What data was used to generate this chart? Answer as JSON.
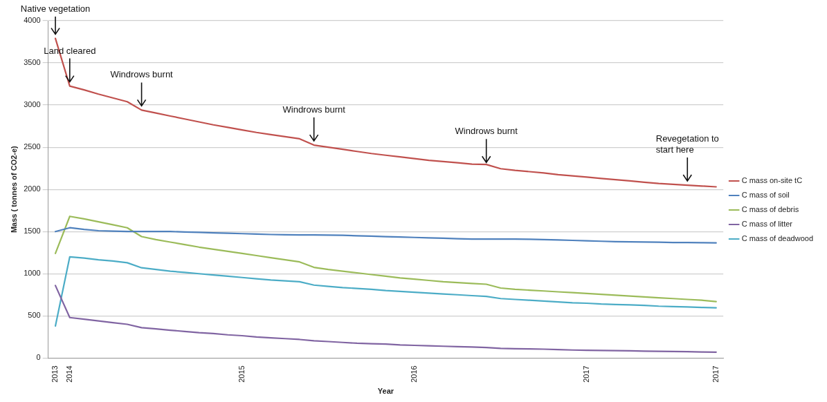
{
  "chart_data": {
    "type": "line",
    "xlabel": "Year",
    "ylabel": "Mass ( tonnes of CO2-e)",
    "x": [
      "2013-12",
      "2014-01",
      "2014-02",
      "2014-03",
      "2014-04",
      "2014-05",
      "2014-06",
      "2014-07",
      "2014-08",
      "2014-09",
      "2014-10",
      "2014-11",
      "2014-12",
      "2015-01",
      "2015-02",
      "2015-03",
      "2015-04",
      "2015-05",
      "2015-06",
      "2015-07",
      "2015-08",
      "2015-09",
      "2015-10",
      "2015-11",
      "2015-12",
      "2016-01",
      "2016-02",
      "2016-03",
      "2016-04",
      "2016-05",
      "2016-06",
      "2016-07",
      "2016-08",
      "2016-09",
      "2016-10",
      "2016-11",
      "2016-12",
      "2017-01",
      "2017-02",
      "2017-03",
      "2017-04",
      "2017-05",
      "2017-06",
      "2017-07",
      "2017-08",
      "2017-09",
      "2017-10"
    ],
    "xlim": [
      "2013-11-16",
      "2017-10-16"
    ],
    "xticks": [
      {
        "value": "2013-12",
        "label": "2013"
      },
      {
        "value": "2014-01",
        "label": "2014"
      },
      {
        "value": "2015-01",
        "label": "2015"
      },
      {
        "value": "2016-01",
        "label": "2016"
      },
      {
        "value": "2017-01",
        "label": "2017"
      },
      {
        "value": "2017-10",
        "label": "2017"
      }
    ],
    "ylim": [
      0,
      4000
    ],
    "yticks": [
      0,
      500,
      1000,
      1500,
      2000,
      2500,
      3000,
      3500,
      4000
    ],
    "grid": "y",
    "legend": "right",
    "marker": "none",
    "line_style": "solid",
    "series": [
      {
        "name": "C mass on-site tC",
        "color": "#c0504d",
        "values": [
          3790,
          3225,
          3180,
          3130,
          3085,
          3040,
          2940,
          2905,
          2870,
          2835,
          2800,
          2765,
          2735,
          2705,
          2675,
          2650,
          2625,
          2600,
          2525,
          2500,
          2475,
          2450,
          2425,
          2405,
          2385,
          2365,
          2345,
          2330,
          2315,
          2300,
          2295,
          2245,
          2225,
          2210,
          2195,
          2175,
          2160,
          2145,
          2130,
          2115,
          2100,
          2085,
          2070,
          2060,
          2050,
          2040,
          2030
        ]
      },
      {
        "name": "C mass of soil",
        "color": "#4f81bd",
        "values": [
          1500,
          1545,
          1525,
          1510,
          1505,
          1500,
          1500,
          1500,
          1500,
          1495,
          1490,
          1485,
          1480,
          1475,
          1470,
          1465,
          1462,
          1460,
          1460,
          1457,
          1455,
          1450,
          1445,
          1440,
          1435,
          1430,
          1425,
          1420,
          1415,
          1410,
          1410,
          1410,
          1410,
          1408,
          1405,
          1400,
          1395,
          1390,
          1385,
          1380,
          1378,
          1375,
          1373,
          1370,
          1370,
          1368,
          1365
        ]
      },
      {
        "name": "C mass of debris",
        "color": "#9bbb59",
        "values": [
          1240,
          1680,
          1650,
          1615,
          1580,
          1545,
          1440,
          1405,
          1375,
          1345,
          1315,
          1290,
          1265,
          1240,
          1215,
          1190,
          1165,
          1140,
          1075,
          1050,
          1030,
          1010,
          990,
          970,
          950,
          935,
          920,
          905,
          895,
          885,
          875,
          830,
          815,
          805,
          795,
          785,
          775,
          765,
          755,
          745,
          735,
          725,
          715,
          705,
          695,
          685,
          670
        ]
      },
      {
        "name": "C mass of litter",
        "color": "#8064a2",
        "values": [
          860,
          480,
          460,
          440,
          420,
          400,
          360,
          345,
          330,
          315,
          300,
          290,
          275,
          265,
          250,
          240,
          230,
          220,
          205,
          195,
          185,
          175,
          170,
          165,
          155,
          150,
          145,
          140,
          135,
          130,
          125,
          115,
          110,
          108,
          105,
          100,
          95,
          92,
          90,
          88,
          85,
          82,
          80,
          78,
          75,
          72,
          70
        ]
      },
      {
        "name": "C mass of deadwood",
        "color": "#4bacc6",
        "values": [
          380,
          1200,
          1185,
          1165,
          1150,
          1130,
          1070,
          1050,
          1030,
          1015,
          1000,
          985,
          970,
          955,
          940,
          925,
          915,
          905,
          865,
          850,
          835,
          825,
          815,
          800,
          790,
          780,
          770,
          760,
          750,
          740,
          730,
          705,
          695,
          685,
          675,
          665,
          655,
          650,
          640,
          635,
          630,
          625,
          615,
          610,
          605,
          600,
          595
        ]
      }
    ],
    "annotations": [
      {
        "text": "Native vegetation",
        "x": "2013-12",
        "y": 3790
      },
      {
        "text": "Land cleared",
        "x": "2014-01",
        "y": 3225
      },
      {
        "text": "Windrows burnt",
        "x": "2014-06",
        "y": 2940
      },
      {
        "text": "Windrows burnt",
        "x": "2015-06",
        "y": 2525
      },
      {
        "text": "Windrows burnt",
        "x": "2016-06",
        "y": 2270
      },
      {
        "text": "Revegetation to start here",
        "x": "2017-08",
        "y": 2050
      }
    ]
  }
}
